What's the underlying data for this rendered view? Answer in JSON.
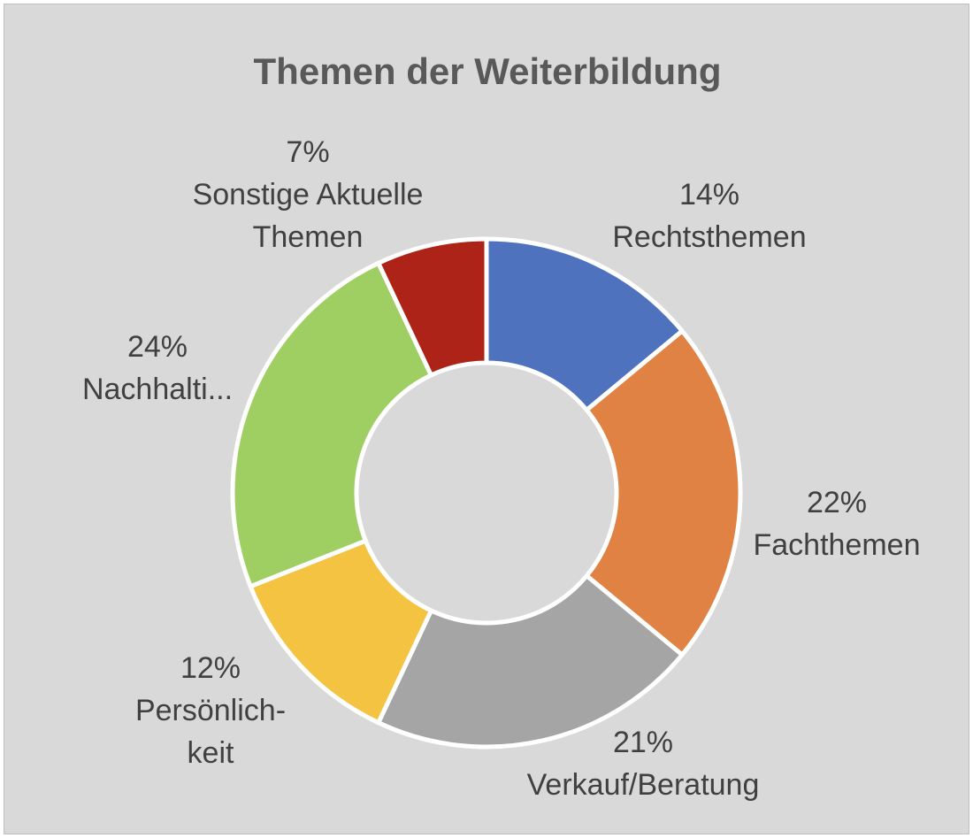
{
  "chart_data": {
    "type": "pie",
    "variant": "doughnut",
    "title": "Themen der Weiterbildung",
    "slices": [
      {
        "name": "Rechtsthemen",
        "value": 14,
        "pct_label": "14%",
        "label_lines": [
          "14%",
          "Rechtsthemen"
        ],
        "color": "#4e72be"
      },
      {
        "name": "Fachthemen",
        "value": 22,
        "pct_label": "22%",
        "label_lines": [
          "22%",
          "Fachthemen"
        ],
        "color": "#df8244"
      },
      {
        "name": "Verkauf/Beratung",
        "value": 21,
        "pct_label": "21%",
        "label_lines": [
          "21%",
          "Verkauf/Beratung"
        ],
        "color": "#a5a5a5"
      },
      {
        "name": "Persönlichkeit",
        "value": 12,
        "pct_label": "12%",
        "label_lines": [
          "12%",
          "Persönlich-",
          "keit"
        ],
        "color": "#f4c342"
      },
      {
        "name": "Nachhaltigkeit",
        "value": 24,
        "pct_label": "24%",
        "label_lines": [
          "24%",
          "Nachhalti..."
        ],
        "color": "#9fcf63"
      },
      {
        "name": "Sonstige Aktuelle Themen",
        "value": 7,
        "pct_label": "7%",
        "label_lines": [
          "7%",
          "Sonstige Aktuelle",
          "Themen"
        ],
        "color": "#ae2318"
      }
    ],
    "start_angle": "12 o'clock, clockwise",
    "legend": "none",
    "background": "#d9d9d9",
    "separator_color": "#ffffff"
  }
}
